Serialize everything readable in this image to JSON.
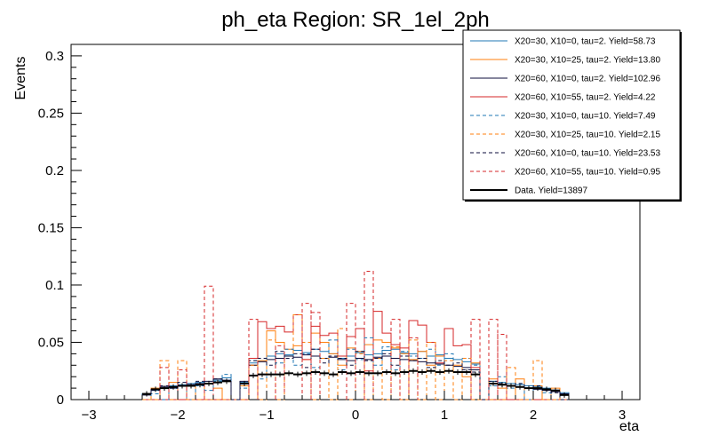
{
  "chart_data": {
    "type": "line",
    "title": "ph_eta Region: SR_1el_2ph",
    "xlabel": "eta",
    "ylabel": "Events",
    "xlim": [
      -3.2,
      3.2
    ],
    "ylim": [
      0,
      0.31
    ],
    "xticks": [
      "−3",
      "−2",
      "−1",
      "0",
      "1",
      "2",
      "3"
    ],
    "yticks": [
      "0",
      "0.05",
      "0.1",
      "0.15",
      "0.2",
      "0.25",
      "0.3"
    ],
    "legend_position": "top-right",
    "bin_edges": [
      -2.4,
      -2.3,
      -2.2,
      -2.1,
      -2.0,
      -1.9,
      -1.8,
      -1.7,
      -1.6,
      -1.5,
      -1.4,
      -1.3,
      -1.2,
      -1.1,
      -1.0,
      -0.9,
      -0.8,
      -0.7,
      -0.6,
      -0.5,
      -0.4,
      -0.3,
      -0.2,
      -0.1,
      0.0,
      0.1,
      0.2,
      0.3,
      0.4,
      0.5,
      0.6,
      0.7,
      0.8,
      0.9,
      1.0,
      1.1,
      1.2,
      1.3,
      1.4,
      1.5,
      1.6,
      1.7,
      1.8,
      1.9,
      2.0,
      2.1,
      2.2,
      2.3,
      2.4
    ],
    "series": [
      {
        "name": "X20=30, X10=0, tau=2. Yield=58.73",
        "color": "#1f77b4",
        "dash": false,
        "values": [
          0.005,
          0.008,
          0.01,
          0.012,
          0.013,
          0.014,
          0.015,
          0.014,
          0.017,
          0.019,
          0.0,
          0.015,
          0.032,
          0.034,
          0.038,
          0.04,
          0.039,
          0.043,
          0.041,
          0.044,
          0.042,
          0.04,
          0.036,
          0.038,
          0.041,
          0.039,
          0.04,
          0.043,
          0.044,
          0.041,
          0.04,
          0.042,
          0.038,
          0.039,
          0.036,
          0.035,
          0.033,
          0.031,
          0.0,
          0.016,
          0.015,
          0.014,
          0.013,
          0.012,
          0.011,
          0.01,
          0.008,
          0.006
        ]
      },
      {
        "name": "X20=30, X10=25, tau=2. Yield=13.80",
        "color": "#ff7f0e",
        "dash": false,
        "values": [
          0.0,
          0.01,
          0.0,
          0.015,
          0.0,
          0.012,
          0.0,
          0.014,
          0.01,
          0.0,
          0.0,
          0.012,
          0.03,
          0.034,
          0.06,
          0.05,
          0.044,
          0.047,
          0.035,
          0.058,
          0.05,
          0.04,
          0.03,
          0.045,
          0.042,
          0.048,
          0.052,
          0.05,
          0.045,
          0.04,
          0.035,
          0.042,
          0.03,
          0.038,
          0.025,
          0.03,
          0.02,
          0.032,
          0.0,
          0.018,
          0.01,
          0.0,
          0.018,
          0.0,
          0.012,
          0.0,
          0.01,
          0.0
        ]
      },
      {
        "name": "X20=60, X10=0, tau=2. Yield=102.96",
        "color": "#0b0b3b",
        "dash": false,
        "values": [
          0.004,
          0.009,
          0.011,
          0.01,
          0.012,
          0.013,
          0.014,
          0.016,
          0.018,
          0.017,
          0.0,
          0.016,
          0.03,
          0.033,
          0.035,
          0.036,
          0.038,
          0.037,
          0.039,
          0.038,
          0.036,
          0.037,
          0.035,
          0.034,
          0.036,
          0.035,
          0.037,
          0.038,
          0.036,
          0.035,
          0.034,
          0.033,
          0.032,
          0.031,
          0.03,
          0.029,
          0.028,
          0.026,
          0.0,
          0.014,
          0.013,
          0.012,
          0.011,
          0.01,
          0.009,
          0.008,
          0.007,
          0.005
        ]
      },
      {
        "name": "X20=60, X10=55, tau=2. Yield=4.22",
        "color": "#d62728",
        "dash": false,
        "values": [
          0.0,
          0.0,
          0.0,
          0.0,
          0.0,
          0.0,
          0.0,
          0.0,
          0.0,
          0.0,
          0.0,
          0.0,
          0.036,
          0.068,
          0.062,
          0.064,
          0.059,
          0.074,
          0.035,
          0.064,
          0.056,
          0.058,
          0.038,
          0.055,
          0.062,
          0.025,
          0.077,
          0.058,
          0.048,
          0.045,
          0.069,
          0.065,
          0.05,
          0.032,
          0.062,
          0.047,
          0.048,
          0.028,
          0.0,
          0.0,
          0.0,
          0.0,
          0.0,
          0.0,
          0.0,
          0.0,
          0.0,
          0.0
        ]
      },
      {
        "name": "X20=30, X10=0, tau=10. Yield=7.49",
        "color": "#1f77b4",
        "dash": true,
        "values": [
          0.0,
          0.005,
          0.0,
          0.01,
          0.012,
          0.0,
          0.012,
          0.008,
          0.016,
          0.022,
          0.0,
          0.01,
          0.034,
          0.018,
          0.038,
          0.032,
          0.044,
          0.03,
          0.04,
          0.028,
          0.036,
          0.052,
          0.026,
          0.044,
          0.035,
          0.054,
          0.03,
          0.046,
          0.026,
          0.042,
          0.038,
          0.036,
          0.044,
          0.03,
          0.04,
          0.024,
          0.036,
          0.03,
          0.0,
          0.012,
          0.02,
          0.01,
          0.014,
          0.0,
          0.01,
          0.006,
          0.0,
          0.0
        ]
      },
      {
        "name": "X20=30, X10=25, tau=10. Yield=2.15",
        "color": "#ff7f0e",
        "dash": true,
        "values": [
          0.0,
          0.0,
          0.034,
          0.0,
          0.034,
          0.0,
          0.0,
          0.0,
          0.0,
          0.0,
          0.0,
          0.0,
          0.03,
          0.0,
          0.052,
          0.0,
          0.036,
          0.074,
          0.05,
          0.0,
          0.036,
          0.0,
          0.062,
          0.0,
          0.04,
          0.0,
          0.036,
          0.0,
          0.046,
          0.0,
          0.052,
          0.0,
          0.05,
          0.0,
          0.034,
          0.0,
          0.036,
          0.0,
          0.0,
          0.0,
          0.0,
          0.028,
          0.0,
          0.0,
          0.034,
          0.0,
          0.0,
          0.0
        ]
      },
      {
        "name": "X20=60, X10=0, tau=10. Yield=23.53",
        "color": "#0b0b3b",
        "dash": true,
        "values": [
          0.005,
          0.008,
          0.012,
          0.01,
          0.015,
          0.013,
          0.016,
          0.014,
          0.018,
          0.016,
          0.0,
          0.014,
          0.034,
          0.036,
          0.03,
          0.042,
          0.036,
          0.04,
          0.028,
          0.044,
          0.032,
          0.038,
          0.036,
          0.03,
          0.042,
          0.034,
          0.036,
          0.04,
          0.03,
          0.038,
          0.034,
          0.036,
          0.028,
          0.034,
          0.03,
          0.032,
          0.026,
          0.024,
          0.0,
          0.016,
          0.014,
          0.012,
          0.014,
          0.01,
          0.012,
          0.008,
          0.006,
          0.0
        ]
      },
      {
        "name": "X20=60, X10=55, tau=10. Yield=0.95",
        "color": "#d62728",
        "dash": true,
        "values": [
          0.0,
          0.0,
          0.0,
          0.0,
          0.0,
          0.0,
          0.0,
          0.0,
          0.0,
          0.0,
          0.0,
          0.0,
          0.0,
          0.0,
          0.0,
          0.0,
          0.0,
          0.0,
          0.0,
          0.0,
          0.0,
          0.0,
          0.0,
          0.0,
          0.0,
          0.0,
          0.0,
          0.0,
          0.0,
          0.0,
          0.0,
          0.0,
          0.0,
          0.0,
          0.0,
          0.0,
          0.0,
          0.0,
          0.0,
          0.0,
          0.0,
          0.0,
          0.0,
          0.0,
          0.0,
          0.0,
          0.0,
          0.0
        ],
        "spikes": [
          {
            "x0": -2.2,
            "x1": -2.1,
            "y": 0.028
          },
          {
            "x0": -2.0,
            "x1": -1.9,
            "y": 0.026
          },
          {
            "x0": -1.7,
            "x1": -1.6,
            "y": 0.099
          },
          {
            "x0": -1.2,
            "x1": -1.1,
            "y": 0.07
          },
          {
            "x0": -0.9,
            "x1": -0.8,
            "y": 0.047
          },
          {
            "x0": -0.6,
            "x1": -0.5,
            "y": 0.084
          },
          {
            "x0": -0.5,
            "x1": -0.4,
            "y": 0.076
          },
          {
            "x0": -0.1,
            "x1": 0.0,
            "y": 0.084
          },
          {
            "x0": 0.1,
            "x1": 0.2,
            "y": 0.112
          },
          {
            "x0": 0.4,
            "x1": 0.5,
            "y": 0.07
          },
          {
            "x0": 0.6,
            "x1": 0.7,
            "y": 0.054
          },
          {
            "x0": 1.3,
            "x1": 1.4,
            "y": 0.07
          },
          {
            "x0": 1.5,
            "x1": 1.6,
            "y": 0.07
          },
          {
            "x0": 1.6,
            "x1": 1.7,
            "y": 0.057
          }
        ]
      },
      {
        "name": "Data. Yield=13897",
        "color": "#000000",
        "dash": false,
        "points": true,
        "values": [
          0.005,
          0.009,
          0.01,
          0.011,
          0.012,
          0.012,
          0.013,
          0.014,
          0.015,
          0.016,
          0.0,
          0.014,
          0.021,
          0.022,
          0.022,
          0.022,
          0.023,
          0.022,
          0.023,
          0.024,
          0.023,
          0.022,
          0.024,
          0.023,
          0.024,
          0.023,
          0.023,
          0.024,
          0.023,
          0.024,
          0.025,
          0.024,
          0.025,
          0.024,
          0.025,
          0.024,
          0.024,
          0.022,
          0.0,
          0.014,
          0.013,
          0.012,
          0.011,
          0.01,
          0.01,
          0.009,
          0.008,
          0.004
        ]
      }
    ]
  }
}
